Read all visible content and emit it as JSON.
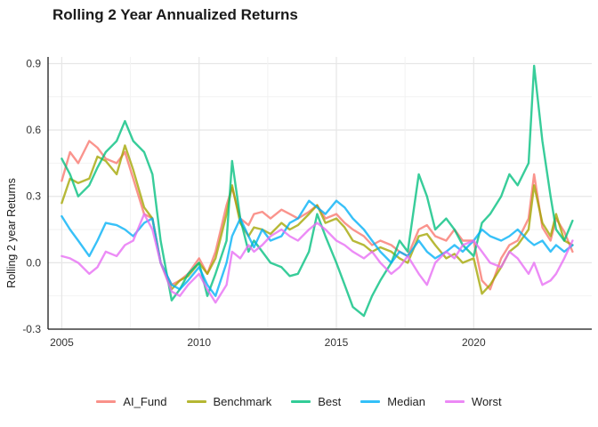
{
  "chart_data": {
    "type": "line",
    "title": "Rolling 2 Year Annualized Returns",
    "xlabel": "",
    "ylabel": "Rolling 2 year Returns",
    "xlim": [
      2004.5,
      2024.3
    ],
    "ylim": [
      -0.3,
      0.93
    ],
    "xticks": [
      2005,
      2010,
      2015,
      2020
    ],
    "xtick_labels": [
      "2005",
      "2010",
      "2015",
      "2020"
    ],
    "yticks": [
      -0.3,
      0.0,
      0.3,
      0.6,
      0.9
    ],
    "ytick_labels": [
      "-0.3",
      "0.0",
      "0.3",
      "0.6",
      "0.9"
    ],
    "grid": true,
    "legend_position": "bottom",
    "series": [
      {
        "name": "AI_Fund",
        "color": "#F8766D",
        "x": [
          2005.0,
          2005.3,
          2005.6,
          2006.0,
          2006.3,
          2006.6,
          2007.0,
          2007.3,
          2007.6,
          2008.0,
          2008.3,
          2008.6,
          2009.0,
          2009.3,
          2009.6,
          2010.0,
          2010.3,
          2010.6,
          2011.0,
          2011.2,
          2011.5,
          2011.8,
          2012.0,
          2012.3,
          2012.6,
          2013.0,
          2013.3,
          2013.6,
          2014.0,
          2014.3,
          2014.6,
          2015.0,
          2015.3,
          2015.6,
          2016.0,
          2016.3,
          2016.6,
          2017.0,
          2017.3,
          2017.6,
          2018.0,
          2018.3,
          2018.6,
          2019.0,
          2019.3,
          2019.6,
          2020.0,
          2020.3,
          2020.6,
          2021.0,
          2021.3,
          2021.6,
          2022.0,
          2022.2,
          2022.5,
          2022.8,
          2023.0,
          2023.3,
          2023.6
        ],
        "y": [
          0.37,
          0.5,
          0.45,
          0.55,
          0.52,
          0.47,
          0.45,
          0.5,
          0.38,
          0.22,
          0.2,
          0.0,
          -0.1,
          -0.08,
          -0.05,
          0.02,
          -0.05,
          0.05,
          0.26,
          0.34,
          0.2,
          0.17,
          0.22,
          0.23,
          0.2,
          0.24,
          0.22,
          0.2,
          0.23,
          0.26,
          0.2,
          0.22,
          0.18,
          0.15,
          0.12,
          0.08,
          0.1,
          0.08,
          0.05,
          0.03,
          0.15,
          0.17,
          0.12,
          0.1,
          0.15,
          0.1,
          0.1,
          -0.08,
          -0.12,
          0.02,
          0.08,
          0.1,
          0.2,
          0.4,
          0.16,
          0.1,
          0.2,
          0.14,
          0.05
        ]
      },
      {
        "name": "Benchmark",
        "color": "#A3A500",
        "x": [
          2005.0,
          2005.3,
          2005.6,
          2006.0,
          2006.3,
          2006.6,
          2007.0,
          2007.3,
          2007.6,
          2008.0,
          2008.3,
          2008.6,
          2009.0,
          2009.3,
          2009.6,
          2010.0,
          2010.3,
          2010.6,
          2011.0,
          2011.2,
          2011.5,
          2011.8,
          2012.0,
          2012.3,
          2012.6,
          2013.0,
          2013.3,
          2013.6,
          2014.0,
          2014.3,
          2014.6,
          2015.0,
          2015.3,
          2015.6,
          2016.0,
          2016.3,
          2016.6,
          2017.0,
          2017.3,
          2017.6,
          2018.0,
          2018.3,
          2018.6,
          2019.0,
          2019.3,
          2019.6,
          2020.0,
          2020.3,
          2020.6,
          2021.0,
          2021.3,
          2021.6,
          2022.0,
          2022.2,
          2022.5,
          2022.8,
          2023.0,
          2023.3,
          2023.6
        ],
        "y": [
          0.27,
          0.38,
          0.36,
          0.38,
          0.48,
          0.46,
          0.4,
          0.53,
          0.42,
          0.25,
          0.2,
          0.0,
          -0.12,
          -0.08,
          -0.06,
          0.0,
          -0.05,
          0.02,
          0.22,
          0.35,
          0.18,
          0.12,
          0.16,
          0.15,
          0.13,
          0.18,
          0.15,
          0.17,
          0.22,
          0.26,
          0.18,
          0.2,
          0.16,
          0.1,
          0.08,
          0.05,
          0.07,
          0.05,
          0.02,
          0.0,
          0.12,
          0.13,
          0.08,
          0.02,
          0.04,
          0.0,
          0.02,
          -0.14,
          -0.1,
          -0.02,
          0.05,
          0.08,
          0.15,
          0.35,
          0.18,
          0.12,
          0.22,
          0.1,
          0.08
        ]
      },
      {
        "name": "Best",
        "color": "#00BF7D",
        "x": [
          2005.0,
          2005.3,
          2005.6,
          2006.0,
          2006.3,
          2006.6,
          2007.0,
          2007.3,
          2007.6,
          2008.0,
          2008.3,
          2008.6,
          2009.0,
          2009.3,
          2009.6,
          2010.0,
          2010.3,
          2010.6,
          2011.0,
          2011.2,
          2011.5,
          2011.8,
          2012.0,
          2012.3,
          2012.6,
          2013.0,
          2013.3,
          2013.6,
          2014.0,
          2014.3,
          2014.6,
          2015.0,
          2015.3,
          2015.6,
          2016.0,
          2016.3,
          2016.6,
          2017.0,
          2017.3,
          2017.6,
          2018.0,
          2018.3,
          2018.6,
          2019.0,
          2019.3,
          2019.6,
          2020.0,
          2020.3,
          2020.6,
          2021.0,
          2021.3,
          2021.6,
          2022.0,
          2022.2,
          2022.5,
          2022.8,
          2023.0,
          2023.3,
          2023.6
        ],
        "y": [
          0.47,
          0.4,
          0.3,
          0.35,
          0.43,
          0.5,
          0.55,
          0.64,
          0.55,
          0.5,
          0.4,
          0.1,
          -0.17,
          -0.12,
          -0.05,
          0.0,
          -0.15,
          -0.05,
          0.1,
          0.46,
          0.2,
          0.05,
          0.1,
          0.05,
          0.0,
          -0.02,
          -0.06,
          -0.05,
          0.05,
          0.22,
          0.12,
          0.0,
          -0.1,
          -0.2,
          -0.24,
          -0.15,
          -0.08,
          0.0,
          0.1,
          0.05,
          0.4,
          0.3,
          0.15,
          0.2,
          0.15,
          0.08,
          0.03,
          0.18,
          0.22,
          0.3,
          0.4,
          0.35,
          0.45,
          0.89,
          0.55,
          0.3,
          0.15,
          0.1,
          0.19
        ]
      },
      {
        "name": "Median",
        "color": "#00B0F6",
        "x": [
          2005.0,
          2005.3,
          2005.6,
          2006.0,
          2006.3,
          2006.6,
          2007.0,
          2007.3,
          2007.6,
          2008.0,
          2008.3,
          2008.6,
          2009.0,
          2009.3,
          2009.6,
          2010.0,
          2010.3,
          2010.6,
          2011.0,
          2011.2,
          2011.5,
          2011.8,
          2012.0,
          2012.3,
          2012.6,
          2013.0,
          2013.3,
          2013.6,
          2014.0,
          2014.3,
          2014.6,
          2015.0,
          2015.3,
          2015.6,
          2016.0,
          2016.3,
          2016.6,
          2017.0,
          2017.3,
          2017.6,
          2018.0,
          2018.3,
          2018.6,
          2019.0,
          2019.3,
          2019.6,
          2020.0,
          2020.3,
          2020.6,
          2021.0,
          2021.3,
          2021.6,
          2022.0,
          2022.2,
          2022.5,
          2022.8,
          2023.0,
          2023.3,
          2023.6
        ],
        "y": [
          0.21,
          0.15,
          0.1,
          0.03,
          0.1,
          0.18,
          0.17,
          0.15,
          0.12,
          0.18,
          0.2,
          0.0,
          -0.1,
          -0.12,
          -0.08,
          -0.02,
          -0.1,
          -0.15,
          0.0,
          0.12,
          0.2,
          0.12,
          0.07,
          0.15,
          0.1,
          0.12,
          0.18,
          0.2,
          0.28,
          0.25,
          0.22,
          0.28,
          0.25,
          0.2,
          0.15,
          0.1,
          0.05,
          0.0,
          0.05,
          0.03,
          0.1,
          0.05,
          0.02,
          0.05,
          0.08,
          0.05,
          0.1,
          0.15,
          0.12,
          0.1,
          0.12,
          0.15,
          0.1,
          0.08,
          0.1,
          0.05,
          0.08,
          0.05,
          0.08
        ]
      },
      {
        "name": "Worst",
        "color": "#E76BF3",
        "x": [
          2005.0,
          2005.3,
          2005.6,
          2006.0,
          2006.3,
          2006.6,
          2007.0,
          2007.3,
          2007.6,
          2008.0,
          2008.3,
          2008.6,
          2009.0,
          2009.3,
          2009.6,
          2010.0,
          2010.3,
          2010.6,
          2011.0,
          2011.2,
          2011.5,
          2011.8,
          2012.0,
          2012.3,
          2012.6,
          2013.0,
          2013.3,
          2013.6,
          2014.0,
          2014.3,
          2014.6,
          2015.0,
          2015.3,
          2015.6,
          2016.0,
          2016.3,
          2016.6,
          2017.0,
          2017.3,
          2017.6,
          2018.0,
          2018.3,
          2018.6,
          2019.0,
          2019.3,
          2019.6,
          2020.0,
          2020.3,
          2020.6,
          2021.0,
          2021.3,
          2021.6,
          2022.0,
          2022.2,
          2022.5,
          2022.8,
          2023.0,
          2023.3,
          2023.6
        ],
        "y": [
          0.03,
          0.02,
          0.0,
          -0.05,
          -0.02,
          0.05,
          0.03,
          0.08,
          0.1,
          0.22,
          0.15,
          0.0,
          -0.13,
          -0.15,
          -0.1,
          -0.05,
          -0.12,
          -0.18,
          -0.1,
          0.05,
          0.02,
          0.08,
          0.05,
          0.08,
          0.12,
          0.15,
          0.12,
          0.1,
          0.15,
          0.18,
          0.15,
          0.1,
          0.08,
          0.05,
          0.02,
          0.05,
          0.0,
          -0.05,
          -0.02,
          0.03,
          -0.05,
          -0.1,
          0.0,
          0.05,
          0.02,
          0.08,
          0.1,
          0.05,
          0.0,
          -0.02,
          0.05,
          0.02,
          -0.05,
          0.0,
          -0.1,
          -0.08,
          -0.05,
          0.02,
          0.1
        ]
      }
    ]
  }
}
